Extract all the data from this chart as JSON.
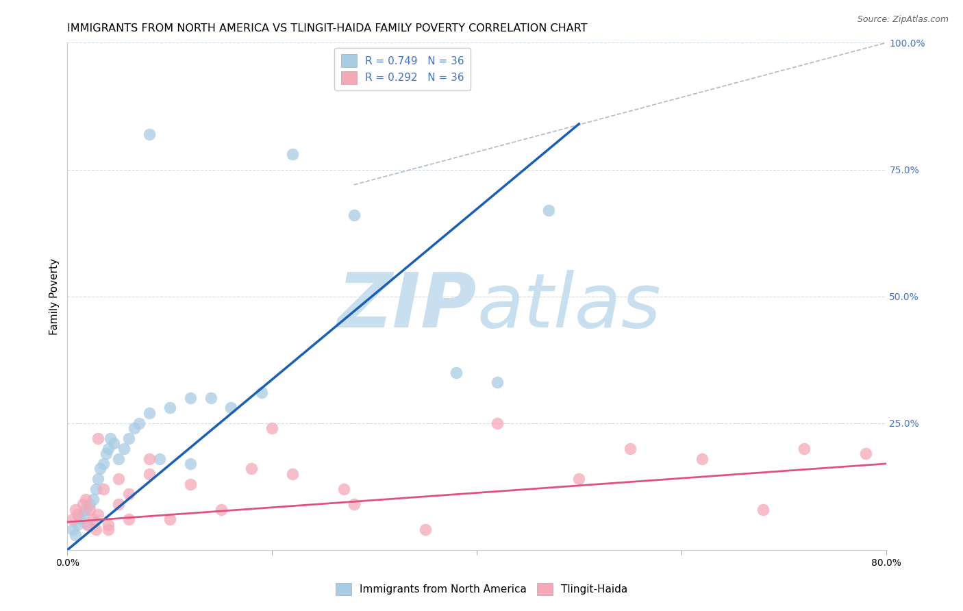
{
  "title": "IMMIGRANTS FROM NORTH AMERICA VS TLINGIT-HAIDA FAMILY POVERTY CORRELATION CHART",
  "source": "Source: ZipAtlas.com",
  "ylabel": "Family Poverty",
  "right_ytick_labels": [
    "100.0%",
    "75.0%",
    "50.0%",
    "25.0%"
  ],
  "right_ytick_values": [
    1.0,
    0.75,
    0.5,
    0.25
  ],
  "xlim": [
    0.0,
    0.8
  ],
  "ylim": [
    0.0,
    1.0
  ],
  "legend_r1": "R = 0.749",
  "legend_n1": "N = 36",
  "legend_r2": "R = 0.292",
  "legend_n2": "N = 36",
  "legend_label1": "Immigrants from North America",
  "legend_label2": "Tlingit-Haida",
  "blue_color": "#a8cce4",
  "pink_color": "#f4a8b8",
  "trend_blue": "#1a5fb4",
  "trend_pink": "#e05080",
  "watermark_zip": "ZIP",
  "watermark_atlas": "atlas",
  "watermark_color": "#c8dff0",
  "blue_scatter_x": [
    0.005,
    0.008,
    0.01,
    0.012,
    0.015,
    0.018,
    0.02,
    0.022,
    0.025,
    0.028,
    0.03,
    0.032,
    0.035,
    0.038,
    0.04,
    0.042,
    0.045,
    0.05,
    0.055,
    0.06,
    0.065,
    0.07,
    0.08,
    0.09,
    0.1,
    0.12,
    0.14,
    0.16,
    0.19,
    0.22,
    0.28,
    0.38,
    0.42,
    0.47,
    0.12,
    0.08
  ],
  "blue_scatter_y": [
    0.04,
    0.03,
    0.05,
    0.06,
    0.07,
    0.08,
    0.05,
    0.09,
    0.1,
    0.12,
    0.14,
    0.16,
    0.17,
    0.19,
    0.2,
    0.22,
    0.21,
    0.18,
    0.2,
    0.22,
    0.24,
    0.25,
    0.27,
    0.18,
    0.28,
    0.17,
    0.3,
    0.28,
    0.31,
    0.78,
    0.66,
    0.35,
    0.33,
    0.67,
    0.3,
    0.82
  ],
  "pink_scatter_x": [
    0.005,
    0.008,
    0.01,
    0.015,
    0.018,
    0.02,
    0.022,
    0.025,
    0.028,
    0.03,
    0.035,
    0.04,
    0.05,
    0.06,
    0.08,
    0.1,
    0.15,
    0.2,
    0.27,
    0.35,
    0.42,
    0.5,
    0.55,
    0.62,
    0.68,
    0.72,
    0.78,
    0.03,
    0.05,
    0.12,
    0.18,
    0.22,
    0.28,
    0.08,
    0.06,
    0.04
  ],
  "pink_scatter_y": [
    0.06,
    0.08,
    0.07,
    0.09,
    0.1,
    0.05,
    0.08,
    0.06,
    0.04,
    0.07,
    0.12,
    0.05,
    0.09,
    0.11,
    0.15,
    0.06,
    0.08,
    0.24,
    0.12,
    0.04,
    0.25,
    0.14,
    0.2,
    0.18,
    0.08,
    0.2,
    0.19,
    0.22,
    0.14,
    0.13,
    0.16,
    0.15,
    0.09,
    0.18,
    0.06,
    0.04
  ],
  "blue_trend_x": [
    0.0,
    0.5
  ],
  "blue_trend_y": [
    0.0,
    0.84
  ],
  "pink_trend_x": [
    0.0,
    0.8
  ],
  "pink_trend_y": [
    0.055,
    0.17
  ],
  "ref_line_x": [
    0.28,
    0.8
  ],
  "ref_line_y": [
    0.72,
    1.0
  ],
  "grid_color": "#d0dce8",
  "grid_style": "--",
  "background_color": "#ffffff",
  "title_fontsize": 11.5,
  "axis_label_fontsize": 11,
  "tick_fontsize": 10,
  "legend_fontsize": 11,
  "source_fontsize": 9
}
